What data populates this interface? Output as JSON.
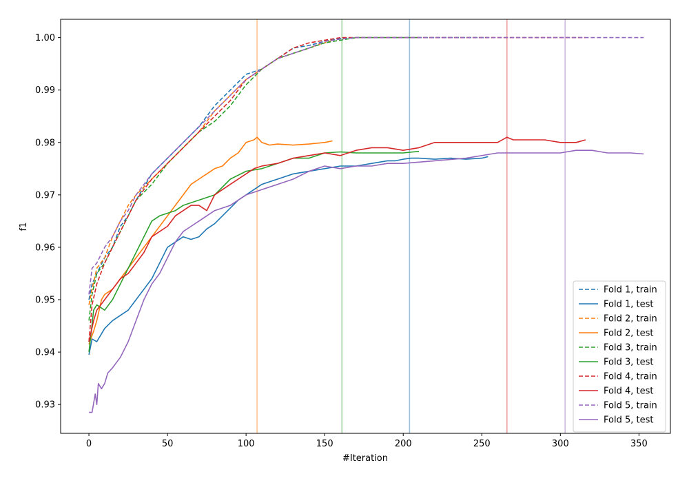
{
  "chart_data": {
    "type": "line",
    "xlabel": "#Iteration",
    "ylabel": "f1",
    "xlim": [
      -18,
      370
    ],
    "ylim": [
      0.9245,
      1.0035
    ],
    "x_ticks": [
      0,
      50,
      100,
      150,
      200,
      250,
      300,
      350
    ],
    "y_ticks": [
      0.93,
      0.94,
      0.95,
      0.96,
      0.97,
      0.98,
      0.99,
      1.0
    ],
    "x_tick_labels": [
      "0",
      "50",
      "100",
      "150",
      "200",
      "250",
      "300",
      "350"
    ],
    "y_tick_labels": [
      "0.93",
      "0.94",
      "0.95",
      "0.96",
      "0.97",
      "0.98",
      "0.99",
      "1.00"
    ],
    "grid": false,
    "legend_position": "lower-right",
    "colors": {
      "fold1": "#1f77b4",
      "fold2": "#ff7f0e",
      "fold3": "#2ca02c",
      "fold4": "#d62728",
      "fold5": "#9467bd"
    },
    "vertical_lines": [
      {
        "x": 107,
        "color": "#ff7f0e"
      },
      {
        "x": 161,
        "color": "#2ca02c"
      },
      {
        "x": 204,
        "color": "#1f77b4"
      },
      {
        "x": 266,
        "color": "#d62728"
      },
      {
        "x": 303,
        "color": "#9467bd"
      }
    ],
    "series": [
      {
        "name": "Fold 1, train",
        "style": "dashed",
        "color": "#1f77b4",
        "x": [
          0,
          2,
          5,
          10,
          15,
          20,
          25,
          30,
          40,
          50,
          60,
          70,
          80,
          90,
          100,
          110,
          120,
          130,
          140,
          150,
          160,
          170,
          180,
          190,
          200,
          210,
          220,
          230,
          240,
          250,
          254
        ],
        "y": [
          0.95,
          0.953,
          0.955,
          0.958,
          0.96,
          0.964,
          0.966,
          0.969,
          0.974,
          0.977,
          0.98,
          0.983,
          0.987,
          0.99,
          0.993,
          0.994,
          0.996,
          0.998,
          0.9985,
          0.9993,
          0.9998,
          1.0,
          1.0,
          1.0,
          1.0,
          1.0,
          1.0,
          1.0,
          1.0,
          1.0,
          1.0
        ]
      },
      {
        "name": "Fold 1, test",
        "style": "solid",
        "color": "#1f77b4",
        "x": [
          0,
          2,
          5,
          8,
          10,
          15,
          20,
          25,
          30,
          35,
          40,
          45,
          50,
          55,
          60,
          65,
          70,
          75,
          80,
          85,
          90,
          95,
          100,
          105,
          110,
          120,
          130,
          140,
          150,
          160,
          170,
          180,
          190,
          195,
          200,
          205,
          210,
          220,
          230,
          240,
          250,
          254
        ],
        "y": [
          0.9395,
          0.9425,
          0.942,
          0.9435,
          0.9445,
          0.946,
          0.947,
          0.948,
          0.95,
          0.952,
          0.954,
          0.957,
          0.96,
          0.961,
          0.962,
          0.9615,
          0.962,
          0.9635,
          0.9645,
          0.966,
          0.9675,
          0.969,
          0.97,
          0.971,
          0.972,
          0.973,
          0.974,
          0.9745,
          0.975,
          0.9755,
          0.9755,
          0.976,
          0.9765,
          0.9765,
          0.9768,
          0.977,
          0.977,
          0.9768,
          0.977,
          0.9768,
          0.977,
          0.9773
        ]
      },
      {
        "name": "Fold 2, train",
        "style": "dashed",
        "color": "#ff7f0e",
        "x": [
          0,
          2,
          5,
          10,
          15,
          20,
          25,
          30,
          40,
          50,
          60,
          70,
          80,
          90,
          100,
          110,
          120,
          130,
          140,
          150,
          155
        ],
        "y": [
          0.949,
          0.952,
          0.956,
          0.958,
          0.962,
          0.965,
          0.968,
          0.97,
          0.973,
          0.976,
          0.979,
          0.982,
          0.986,
          0.989,
          0.992,
          0.994,
          0.996,
          0.997,
          0.998,
          0.999,
          0.9995
        ]
      },
      {
        "name": "Fold 2, test",
        "style": "solid",
        "color": "#ff7f0e",
        "x": [
          0,
          3,
          5,
          8,
          10,
          15,
          20,
          25,
          30,
          35,
          40,
          45,
          50,
          55,
          60,
          65,
          70,
          75,
          80,
          85,
          90,
          95,
          100,
          105,
          107,
          110,
          115,
          120,
          130,
          140,
          150,
          155
        ],
        "y": [
          0.9415,
          0.944,
          0.946,
          0.95,
          0.951,
          0.952,
          0.954,
          0.956,
          0.958,
          0.96,
          0.962,
          0.964,
          0.966,
          0.968,
          0.97,
          0.972,
          0.973,
          0.974,
          0.975,
          0.9755,
          0.977,
          0.978,
          0.98,
          0.9805,
          0.981,
          0.98,
          0.9795,
          0.9797,
          0.9795,
          0.9797,
          0.98,
          0.9803
        ]
      },
      {
        "name": "Fold 3, train",
        "style": "dashed",
        "color": "#2ca02c",
        "x": [
          0,
          2,
          5,
          10,
          15,
          20,
          25,
          30,
          40,
          50,
          60,
          70,
          80,
          90,
          100,
          110,
          120,
          130,
          140,
          150,
          160,
          170,
          180,
          190,
          200,
          210
        ],
        "y": [
          0.946,
          0.951,
          0.955,
          0.957,
          0.96,
          0.963,
          0.966,
          0.969,
          0.972,
          0.976,
          0.979,
          0.982,
          0.984,
          0.987,
          0.991,
          0.994,
          0.996,
          0.997,
          0.998,
          0.999,
          0.9995,
          1.0,
          1.0,
          1.0,
          1.0,
          1.0
        ]
      },
      {
        "name": "Fold 3, test",
        "style": "solid",
        "color": "#2ca02c",
        "x": [
          0,
          3,
          5,
          10,
          15,
          20,
          25,
          30,
          35,
          40,
          45,
          50,
          55,
          60,
          65,
          70,
          80,
          90,
          100,
          110,
          120,
          130,
          140,
          150,
          160,
          170,
          180,
          190,
          200,
          210
        ],
        "y": [
          0.94,
          0.948,
          0.949,
          0.948,
          0.95,
          0.953,
          0.956,
          0.959,
          0.962,
          0.965,
          0.966,
          0.9665,
          0.967,
          0.968,
          0.9685,
          0.969,
          0.97,
          0.973,
          0.9745,
          0.975,
          0.976,
          0.977,
          0.977,
          0.978,
          0.9782,
          0.978,
          0.978,
          0.978,
          0.978,
          0.9783
        ]
      },
      {
        "name": "Fold 4, train",
        "style": "dashed",
        "color": "#d62728",
        "x": [
          0,
          2,
          5,
          10,
          15,
          20,
          25,
          30,
          40,
          50,
          60,
          70,
          80,
          90,
          100,
          110,
          120,
          130,
          140,
          150,
          160,
          170,
          180,
          190,
          200,
          220,
          240,
          260,
          280,
          300,
          316
        ],
        "y": [
          0.942,
          0.949,
          0.953,
          0.957,
          0.96,
          0.963,
          0.966,
          0.969,
          0.973,
          0.976,
          0.979,
          0.982,
          0.985,
          0.988,
          0.992,
          0.994,
          0.996,
          0.998,
          0.999,
          0.9995,
          1.0,
          1.0,
          1.0,
          1.0,
          1.0,
          1.0,
          1.0,
          1.0,
          1.0,
          1.0,
          1.0
        ]
      },
      {
        "name": "Fold 4, test",
        "style": "solid",
        "color": "#d62728",
        "x": [
          0,
          3,
          5,
          10,
          15,
          20,
          25,
          30,
          35,
          40,
          45,
          50,
          55,
          60,
          65,
          70,
          75,
          80,
          85,
          90,
          100,
          105,
          110,
          120,
          130,
          140,
          150,
          160,
          170,
          180,
          190,
          200,
          210,
          220,
          230,
          240,
          250,
          260,
          266,
          270,
          280,
          290,
          300,
          310,
          316
        ],
        "y": [
          0.942,
          0.946,
          0.948,
          0.95,
          0.952,
          0.954,
          0.955,
          0.957,
          0.959,
          0.962,
          0.963,
          0.964,
          0.966,
          0.967,
          0.968,
          0.968,
          0.967,
          0.97,
          0.971,
          0.972,
          0.974,
          0.975,
          0.9755,
          0.976,
          0.977,
          0.9775,
          0.978,
          0.9775,
          0.9785,
          0.979,
          0.979,
          0.9785,
          0.979,
          0.98,
          0.98,
          0.98,
          0.98,
          0.98,
          0.981,
          0.9805,
          0.9805,
          0.9805,
          0.98,
          0.98,
          0.9805
        ]
      },
      {
        "name": "Fold 5, train",
        "style": "dashed",
        "color": "#9467bd",
        "x": [
          0,
          2,
          5,
          10,
          15,
          20,
          25,
          30,
          40,
          50,
          60,
          70,
          80,
          90,
          100,
          110,
          120,
          130,
          140,
          150,
          160,
          170,
          180,
          200,
          250,
          300,
          353
        ],
        "y": [
          0.951,
          0.956,
          0.957,
          0.96,
          0.962,
          0.965,
          0.967,
          0.97,
          0.974,
          0.977,
          0.98,
          0.983,
          0.986,
          0.989,
          0.992,
          0.994,
          0.996,
          0.997,
          0.998,
          0.9993,
          0.9997,
          1.0,
          1.0,
          1.0,
          1.0,
          1.0,
          1.0
        ]
      },
      {
        "name": "Fold 5, test",
        "style": "solid",
        "color": "#9467bd",
        "x": [
          0,
          2,
          4,
          5,
          6,
          8,
          10,
          12,
          15,
          20,
          25,
          30,
          35,
          40,
          45,
          50,
          55,
          60,
          65,
          70,
          75,
          80,
          90,
          100,
          110,
          120,
          130,
          140,
          150,
          160,
          170,
          180,
          190,
          200,
          220,
          240,
          260,
          280,
          300,
          310,
          320,
          330,
          340,
          345,
          353
        ],
        "y": [
          0.9285,
          0.9285,
          0.932,
          0.93,
          0.934,
          0.933,
          0.934,
          0.936,
          0.937,
          0.939,
          0.942,
          0.946,
          0.95,
          0.953,
          0.955,
          0.958,
          0.961,
          0.963,
          0.964,
          0.965,
          0.966,
          0.967,
          0.968,
          0.97,
          0.971,
          0.972,
          0.973,
          0.9745,
          0.9755,
          0.975,
          0.9755,
          0.9755,
          0.976,
          0.976,
          0.9765,
          0.977,
          0.978,
          0.978,
          0.978,
          0.9785,
          0.9785,
          0.978,
          0.978,
          0.978,
          0.9778
        ]
      }
    ]
  }
}
